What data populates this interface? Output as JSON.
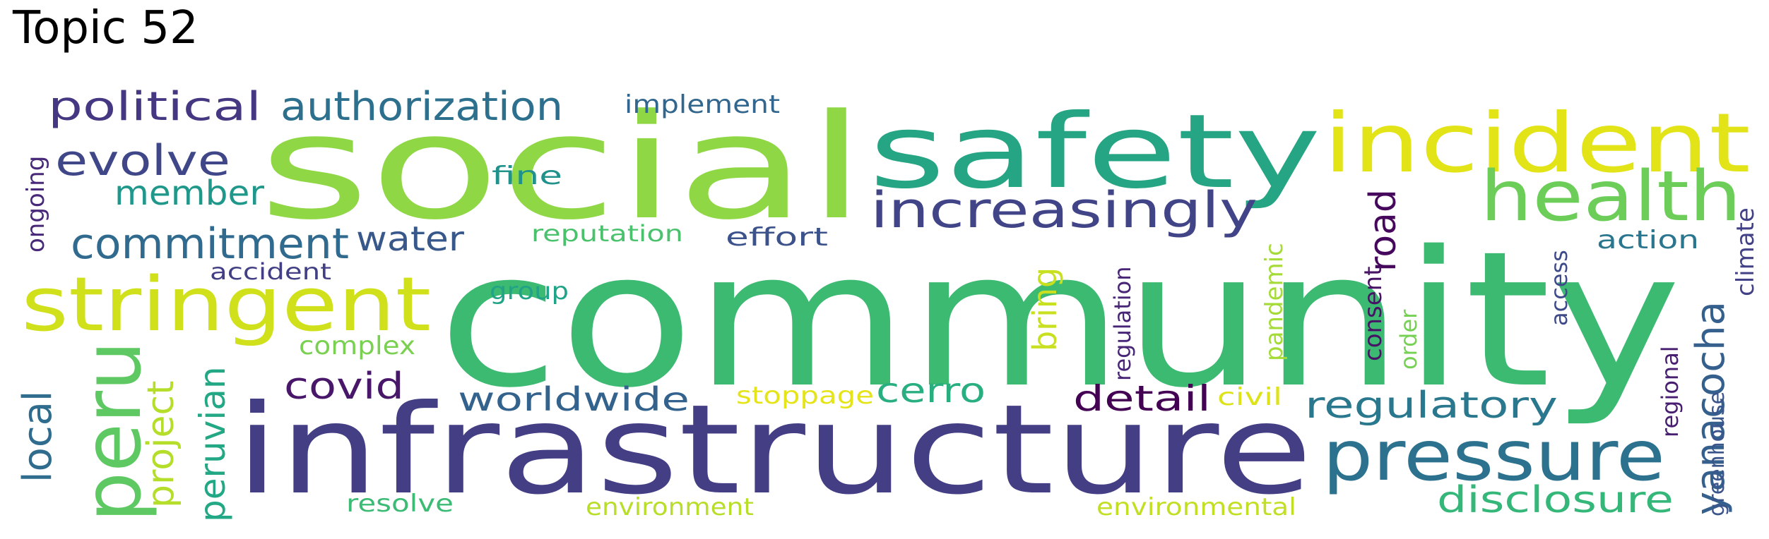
{
  "title": "Topic 52",
  "words": [
    {
      "text": "community",
      "color": "#3dba72"
    },
    {
      "text": "social",
      "color": "#8fd744"
    },
    {
      "text": "infrastructure",
      "color": "#443e84"
    },
    {
      "text": "safety",
      "color": "#25a584"
    },
    {
      "text": "incident",
      "color": "#e2e418"
    },
    {
      "text": "stringent",
      "color": "#d0e11c"
    },
    {
      "text": "health",
      "color": "#6cce59"
    },
    {
      "text": "pressure",
      "color": "#2c728e"
    },
    {
      "text": "increasingly",
      "color": "#414487"
    },
    {
      "text": "peru",
      "color": "#5ec962"
    },
    {
      "text": "commitment",
      "color": "#306a8e"
    },
    {
      "text": "political",
      "color": "#453781"
    },
    {
      "text": "authorization",
      "color": "#2d708e"
    },
    {
      "text": "evolve",
      "color": "#3f4788"
    },
    {
      "text": "yanacocha",
      "color": "#355f8d"
    },
    {
      "text": "regulatory",
      "color": "#2a788e"
    },
    {
      "text": "disclosure",
      "color": "#35b779"
    },
    {
      "text": "project",
      "color": "#b5de2b"
    },
    {
      "text": "peruvian",
      "color": "#22a884"
    },
    {
      "text": "local",
      "color": "#2f6c8e"
    },
    {
      "text": "member",
      "color": "#1f988b"
    },
    {
      "text": "water",
      "color": "#38588c"
    },
    {
      "text": "covid",
      "color": "#481769"
    },
    {
      "text": "worldwide",
      "color": "#33628d"
    },
    {
      "text": "cerro",
      "color": "#29af7f"
    },
    {
      "text": "detail",
      "color": "#440154"
    },
    {
      "text": "road",
      "color": "#46085c"
    },
    {
      "text": "bring",
      "color": "#c8e020"
    },
    {
      "text": "implement",
      "color": "#31668e"
    },
    {
      "text": "fine",
      "color": "#21918c"
    },
    {
      "text": "effort",
      "color": "#3b528b"
    },
    {
      "text": "action",
      "color": "#2a768e"
    },
    {
      "text": "reputation",
      "color": "#4ac16d"
    },
    {
      "text": "accident",
      "color": "#423f85"
    },
    {
      "text": "group",
      "color": "#20a386"
    },
    {
      "text": "complex",
      "color": "#7ad151"
    },
    {
      "text": "stoppage",
      "color": "#e5e419"
    },
    {
      "text": "civil",
      "color": "#dde318"
    },
    {
      "text": "resolve",
      "color": "#3cbb75"
    },
    {
      "text": "environment",
      "color": "#b8de29"
    },
    {
      "text": "environmental",
      "color": "#c2df23"
    },
    {
      "text": "ongoing",
      "color": "#482878"
    },
    {
      "text": "regulation",
      "color": "#482576"
    },
    {
      "text": "pandemic",
      "color": "#a5db36"
    },
    {
      "text": "consent",
      "color": "#471365"
    },
    {
      "text": "order",
      "color": "#75d054"
    },
    {
      "text": "access",
      "color": "#3e4a89"
    },
    {
      "text": "regional",
      "color": "#481f70"
    },
    {
      "text": "greenhouse",
      "color": "#3a548c"
    },
    {
      "text": "climate",
      "color": "#424086"
    }
  ]
}
